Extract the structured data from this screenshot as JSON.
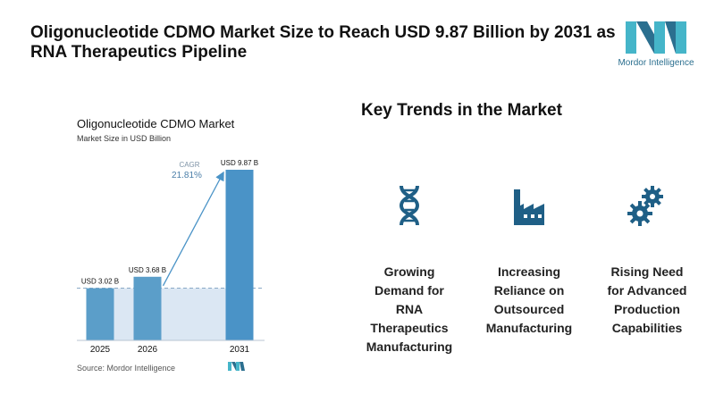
{
  "headline": "Oligonucleotide CDMO Market Size to Reach USD 9.87 Billion by 2031 as RNA Therapeutics Pipeline",
  "logo": {
    "text": "Mordor Intelligence",
    "colors": [
      "#45b5c9",
      "#2b6f8f"
    ]
  },
  "chart": {
    "title": "Oligonucleotide CDMO Market",
    "subtitle": "Market Size in USD Billion",
    "source": "Source: Mordor Intelligence",
    "cagr_label": "CAGR",
    "cagr_value": "21.81%"
  },
  "chart_data": {
    "type": "bar",
    "title": "Oligonucleotide CDMO Market",
    "ylabel": "Market Size in USD Billion",
    "categories": [
      "2025",
      "2026",
      "2031"
    ],
    "values": [
      3.02,
      3.68,
      9.87
    ],
    "value_labels": [
      "USD 3.02 B",
      "USD 3.68 B",
      "USD 9.87 B"
    ],
    "ylim": [
      0,
      9.87
    ],
    "grid": false,
    "bar_colors": [
      "#5b9ec9",
      "#5b9ec9",
      "#4a93c7"
    ],
    "cagr": "21.81%"
  },
  "trends": {
    "title": "Key Trends in the Market",
    "items": [
      {
        "icon": "dna-icon",
        "label_lines": [
          "Growing",
          "Demand for",
          "RNA",
          "Therapeutics",
          "Manufacturing"
        ]
      },
      {
        "icon": "factory-icon",
        "label_lines": [
          "Increasing",
          "Reliance on",
          "Outsourced",
          "Manufacturing"
        ]
      },
      {
        "icon": "gears-icon",
        "label_lines": [
          "Rising Need",
          "for Advanced",
          "Production",
          "Capabilities"
        ]
      }
    ],
    "icon_color": "#1f5f86"
  }
}
